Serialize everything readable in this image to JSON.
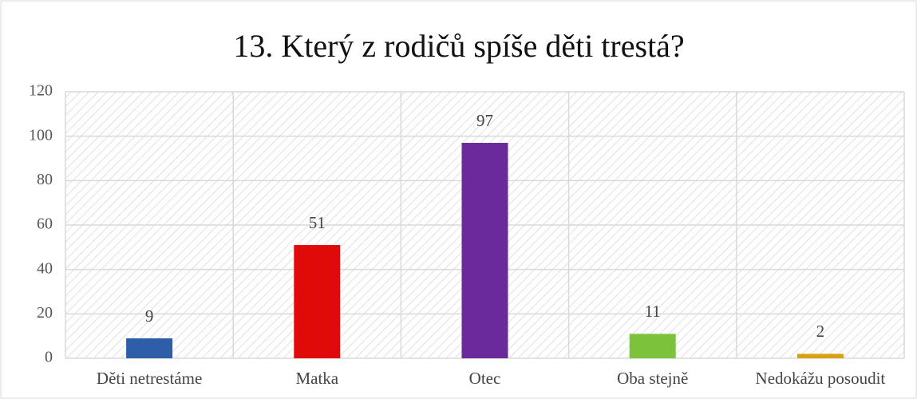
{
  "chart_data": {
    "type": "bar",
    "title": "13. Který z rodičů spíše děti trestá?",
    "categories": [
      "Děti netrestáme",
      "Matka",
      "Otec",
      "Oba stejně",
      "Nedokážu posoudit"
    ],
    "values": [
      9,
      51,
      97,
      11,
      2
    ],
    "colors": [
      "#2f5ea8",
      "#e00a0a",
      "#6a2a9c",
      "#7cc23a",
      "#d9a012"
    ],
    "ylim": [
      0,
      120
    ],
    "yticks": [
      0,
      20,
      40,
      60,
      80,
      100,
      120
    ],
    "grid": true
  }
}
